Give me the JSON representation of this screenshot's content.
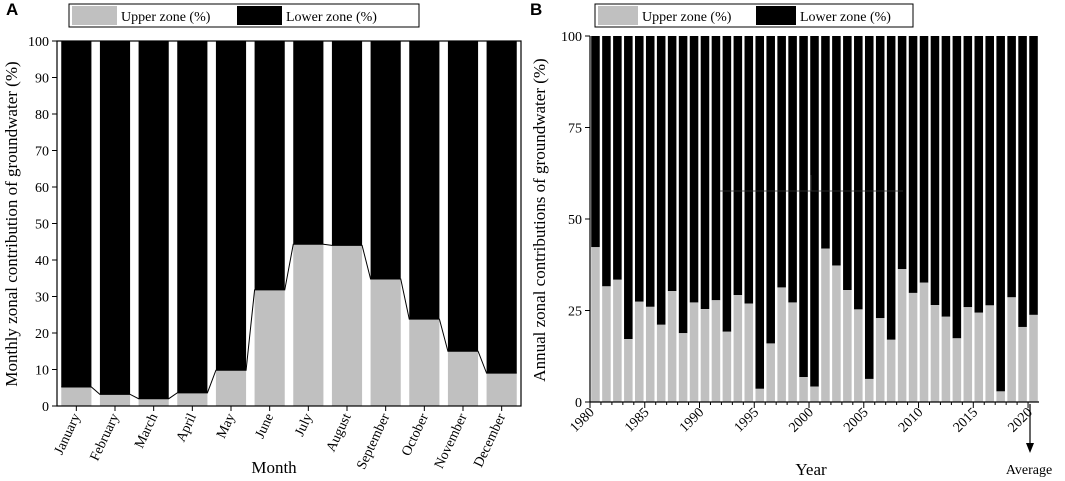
{
  "chart_data": [
    {
      "panel": "A",
      "type": "bar",
      "stacked": true,
      "xlabel": "Month",
      "ylabel": "Monthly zonal contribution of groundwater (%)",
      "ylim": [
        0,
        100
      ],
      "yticks": [
        0,
        10,
        20,
        30,
        40,
        50,
        60,
        70,
        80,
        90,
        100
      ],
      "categories": [
        "January",
        "February",
        "March",
        "April",
        "May",
        "June",
        "July",
        "August",
        "September",
        "October",
        "November",
        "December"
      ],
      "series": [
        {
          "name": "Upper zone (%)",
          "color": "#c0c0c0",
          "values": [
            5.2,
            3.2,
            2.0,
            3.6,
            9.8,
            31.8,
            44.3,
            44.0,
            34.8,
            23.8,
            15.0,
            9.0
          ]
        },
        {
          "name": "Lower zone (%)",
          "color": "#000000",
          "values": [
            94.8,
            96.8,
            98.0,
            96.4,
            90.2,
            68.2,
            55.7,
            56.0,
            65.2,
            76.2,
            85.0,
            91.0
          ]
        }
      ],
      "legend": [
        "Upper zone (%)",
        "Lower zone (%)"
      ],
      "legend_position": "top"
    },
    {
      "panel": "B",
      "type": "bar",
      "stacked": true,
      "xlabel": "Year",
      "ylabel": "Annual zonal contributions of groundwater (%)",
      "ylim": [
        0,
        100
      ],
      "yticks": [
        0,
        25,
        50,
        75,
        100
      ],
      "xticks": [
        "1980",
        "1985",
        "1990",
        "1995",
        "2000",
        "2005",
        "2010",
        "2015",
        "2020"
      ],
      "categories": [
        "1981",
        "1982",
        "1983",
        "1984",
        "1985",
        "1986",
        "1987",
        "1988",
        "1989",
        "1990",
        "1991",
        "1992",
        "1993",
        "1994",
        "1995",
        "1996",
        "1997",
        "1998",
        "1999",
        "2000",
        "2001",
        "2002",
        "2003",
        "2004",
        "2005",
        "2006",
        "2007",
        "2008",
        "2009",
        "2010",
        "2011",
        "2012",
        "2013",
        "2014",
        "2015",
        "2016",
        "2017",
        "2018",
        "2019",
        "2020",
        "Average"
      ],
      "series": [
        {
          "name": "Upper zone (%)",
          "color": "#c0c0c0",
          "values": [
            42.3,
            31.6,
            33.4,
            17.2,
            27.4,
            26.0,
            21.1,
            30.3,
            18.8,
            27.2,
            25.4,
            27.8,
            19.2,
            29.2,
            26.9,
            3.6,
            16.0,
            31.3,
            27.2,
            6.8,
            4.2,
            41.9,
            37.3,
            30.6,
            25.3,
            6.3,
            22.9,
            17.0,
            36.3,
            29.8,
            32.6,
            26.5,
            23.3,
            17.4,
            25.9,
            24.4,
            26.4,
            2.9,
            28.6,
            20.5,
            23.8
          ]
        },
        {
          "name": "Lower zone (%)",
          "color": "#000000",
          "values": [
            57.7,
            68.4,
            66.6,
            82.8,
            72.6,
            74.0,
            78.9,
            69.7,
            81.2,
            72.8,
            74.6,
            72.2,
            80.8,
            70.8,
            73.1,
            96.4,
            84.0,
            68.7,
            72.8,
            93.2,
            95.8,
            58.1,
            62.7,
            69.4,
            74.7,
            93.7,
            77.1,
            83.0,
            63.7,
            70.2,
            67.4,
            73.5,
            76.7,
            82.6,
            74.1,
            75.6,
            73.6,
            97.1,
            71.4,
            79.5,
            76.2
          ]
        }
      ],
      "annotation": "Average",
      "legend": [
        "Upper zone (%)",
        "Lower zone (%)"
      ],
      "legend_position": "top"
    }
  ]
}
